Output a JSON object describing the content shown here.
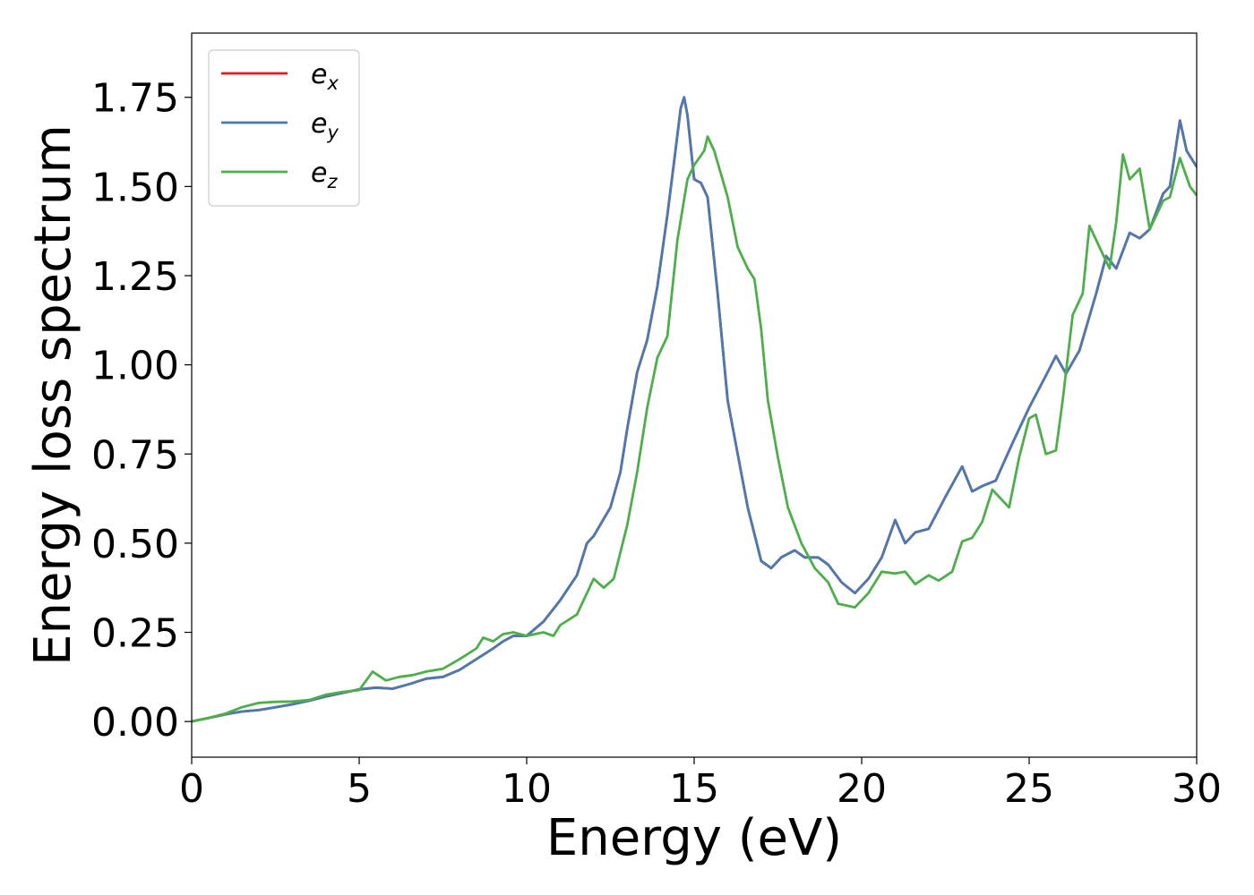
{
  "chart_data": {
    "type": "line",
    "title": "",
    "xlabel": "Energy (eV)",
    "ylabel": "Energy loss spectrum",
    "xlim": [
      0,
      30
    ],
    "ylim": [
      -0.1,
      1.93
    ],
    "xticks": [
      0,
      5,
      10,
      15,
      20,
      25,
      30
    ],
    "yticks": [
      0.0,
      0.25,
      0.5,
      0.75,
      1.0,
      1.25,
      1.5,
      1.75
    ],
    "xtick_labels": [
      "0",
      "5",
      "10",
      "15",
      "20",
      "25",
      "30"
    ],
    "ytick_labels": [
      "0.00",
      "0.25",
      "0.50",
      "0.75",
      "1.00",
      "1.25",
      "1.50",
      "1.75"
    ],
    "grid": false,
    "legend_position": "upper-left",
    "series": [
      {
        "name": "e",
        "subscript": "x",
        "color": "#e41a1c",
        "points": [
          [
            0,
            0
          ],
          [
            0.5,
            0.01
          ],
          [
            1,
            0.02
          ],
          [
            1.5,
            0.028
          ],
          [
            2,
            0.032
          ],
          [
            2.5,
            0.04
          ],
          [
            3,
            0.048
          ],
          [
            3.5,
            0.058
          ],
          [
            4,
            0.07
          ],
          [
            4.5,
            0.08
          ],
          [
            5,
            0.09
          ],
          [
            5.5,
            0.095
          ],
          [
            6,
            0.092
          ],
          [
            6.5,
            0.105
          ],
          [
            7,
            0.12
          ],
          [
            7.5,
            0.125
          ],
          [
            8,
            0.145
          ],
          [
            8.5,
            0.175
          ],
          [
            9,
            0.205
          ],
          [
            9.3,
            0.225
          ],
          [
            9.6,
            0.24
          ],
          [
            10,
            0.24
          ],
          [
            10.5,
            0.28
          ],
          [
            11,
            0.34
          ],
          [
            11.5,
            0.41
          ],
          [
            11.8,
            0.5
          ],
          [
            12,
            0.52
          ],
          [
            12.5,
            0.6
          ],
          [
            12.8,
            0.7
          ],
          [
            13,
            0.82
          ],
          [
            13.3,
            0.98
          ],
          [
            13.6,
            1.07
          ],
          [
            13.9,
            1.22
          ],
          [
            14.2,
            1.42
          ],
          [
            14.4,
            1.57
          ],
          [
            14.6,
            1.72
          ],
          [
            14.7,
            1.75
          ],
          [
            14.8,
            1.7
          ],
          [
            15,
            1.52
          ],
          [
            15.2,
            1.51
          ],
          [
            15.4,
            1.47
          ],
          [
            15.7,
            1.2
          ],
          [
            16,
            0.9
          ],
          [
            16.3,
            0.75
          ],
          [
            16.6,
            0.6
          ],
          [
            17,
            0.45
          ],
          [
            17.3,
            0.43
          ],
          [
            17.6,
            0.46
          ],
          [
            18,
            0.48
          ],
          [
            18.3,
            0.46
          ],
          [
            18.7,
            0.46
          ],
          [
            19,
            0.44
          ],
          [
            19.4,
            0.39
          ],
          [
            19.8,
            0.36
          ],
          [
            20.2,
            0.4
          ],
          [
            20.6,
            0.46
          ],
          [
            21,
            0.565
          ],
          [
            21.3,
            0.5
          ],
          [
            21.6,
            0.53
          ],
          [
            22,
            0.54
          ],
          [
            22.5,
            0.63
          ],
          [
            23,
            0.715
          ],
          [
            23.3,
            0.645
          ],
          [
            23.6,
            0.66
          ],
          [
            24,
            0.675
          ],
          [
            24.5,
            0.78
          ],
          [
            25,
            0.88
          ],
          [
            25.5,
            0.97
          ],
          [
            25.8,
            1.025
          ],
          [
            26.1,
            0.975
          ],
          [
            26.5,
            1.04
          ],
          [
            27,
            1.2
          ],
          [
            27.3,
            1.305
          ],
          [
            27.6,
            1.27
          ],
          [
            28,
            1.37
          ],
          [
            28.3,
            1.355
          ],
          [
            28.6,
            1.38
          ],
          [
            29,
            1.48
          ],
          [
            29.2,
            1.5
          ],
          [
            29.5,
            1.685
          ],
          [
            29.7,
            1.6
          ],
          [
            30,
            1.555
          ]
        ]
      },
      {
        "name": "e",
        "subscript": "y",
        "color": "#4a7ab0",
        "points": [
          [
            0,
            0
          ],
          [
            0.5,
            0.01
          ],
          [
            1,
            0.02
          ],
          [
            1.5,
            0.028
          ],
          [
            2,
            0.032
          ],
          [
            2.5,
            0.04
          ],
          [
            3,
            0.048
          ],
          [
            3.5,
            0.058
          ],
          [
            4,
            0.07
          ],
          [
            4.5,
            0.08
          ],
          [
            5,
            0.09
          ],
          [
            5.5,
            0.095
          ],
          [
            6,
            0.092
          ],
          [
            6.5,
            0.105
          ],
          [
            7,
            0.12
          ],
          [
            7.5,
            0.125
          ],
          [
            8,
            0.145
          ],
          [
            8.5,
            0.175
          ],
          [
            9,
            0.205
          ],
          [
            9.3,
            0.225
          ],
          [
            9.6,
            0.24
          ],
          [
            10,
            0.24
          ],
          [
            10.5,
            0.28
          ],
          [
            11,
            0.34
          ],
          [
            11.5,
            0.41
          ],
          [
            11.8,
            0.5
          ],
          [
            12,
            0.52
          ],
          [
            12.5,
            0.6
          ],
          [
            12.8,
            0.7
          ],
          [
            13,
            0.82
          ],
          [
            13.3,
            0.98
          ],
          [
            13.6,
            1.07
          ],
          [
            13.9,
            1.22
          ],
          [
            14.2,
            1.42
          ],
          [
            14.4,
            1.57
          ],
          [
            14.6,
            1.72
          ],
          [
            14.7,
            1.75
          ],
          [
            14.8,
            1.7
          ],
          [
            15,
            1.52
          ],
          [
            15.2,
            1.51
          ],
          [
            15.4,
            1.47
          ],
          [
            15.7,
            1.2
          ],
          [
            16,
            0.9
          ],
          [
            16.3,
            0.75
          ],
          [
            16.6,
            0.6
          ],
          [
            17,
            0.45
          ],
          [
            17.3,
            0.43
          ],
          [
            17.6,
            0.46
          ],
          [
            18,
            0.48
          ],
          [
            18.3,
            0.46
          ],
          [
            18.7,
            0.46
          ],
          [
            19,
            0.44
          ],
          [
            19.4,
            0.39
          ],
          [
            19.8,
            0.36
          ],
          [
            20.2,
            0.4
          ],
          [
            20.6,
            0.46
          ],
          [
            21,
            0.565
          ],
          [
            21.3,
            0.5
          ],
          [
            21.6,
            0.53
          ],
          [
            22,
            0.54
          ],
          [
            22.5,
            0.63
          ],
          [
            23,
            0.715
          ],
          [
            23.3,
            0.645
          ],
          [
            23.6,
            0.66
          ],
          [
            24,
            0.675
          ],
          [
            24.5,
            0.78
          ],
          [
            25,
            0.88
          ],
          [
            25.5,
            0.97
          ],
          [
            25.8,
            1.025
          ],
          [
            26.1,
            0.975
          ],
          [
            26.5,
            1.04
          ],
          [
            27,
            1.2
          ],
          [
            27.3,
            1.305
          ],
          [
            27.6,
            1.27
          ],
          [
            28,
            1.37
          ],
          [
            28.3,
            1.355
          ],
          [
            28.6,
            1.38
          ],
          [
            29,
            1.48
          ],
          [
            29.2,
            1.5
          ],
          [
            29.5,
            1.685
          ],
          [
            29.7,
            1.6
          ],
          [
            30,
            1.555
          ]
        ]
      },
      {
        "name": "e",
        "subscript": "z",
        "color": "#4daf4a",
        "points": [
          [
            0,
            0
          ],
          [
            0.5,
            0.01
          ],
          [
            1,
            0.022
          ],
          [
            1.5,
            0.04
          ],
          [
            2,
            0.052
          ],
          [
            2.5,
            0.055
          ],
          [
            3,
            0.056
          ],
          [
            3.5,
            0.06
          ],
          [
            4,
            0.075
          ],
          [
            4.5,
            0.083
          ],
          [
            5,
            0.088
          ],
          [
            5.4,
            0.14
          ],
          [
            5.8,
            0.115
          ],
          [
            6.2,
            0.125
          ],
          [
            6.6,
            0.13
          ],
          [
            7,
            0.14
          ],
          [
            7.5,
            0.148
          ],
          [
            8,
            0.175
          ],
          [
            8.5,
            0.205
          ],
          [
            8.7,
            0.235
          ],
          [
            9,
            0.225
          ],
          [
            9.3,
            0.245
          ],
          [
            9.6,
            0.25
          ],
          [
            10,
            0.24
          ],
          [
            10.5,
            0.25
          ],
          [
            10.8,
            0.24
          ],
          [
            11,
            0.27
          ],
          [
            11.5,
            0.3
          ],
          [
            11.8,
            0.36
          ],
          [
            12,
            0.4
          ],
          [
            12.3,
            0.375
          ],
          [
            12.6,
            0.4
          ],
          [
            13,
            0.55
          ],
          [
            13.3,
            0.7
          ],
          [
            13.6,
            0.88
          ],
          [
            13.9,
            1.02
          ],
          [
            14.2,
            1.08
          ],
          [
            14.5,
            1.35
          ],
          [
            14.8,
            1.52
          ],
          [
            15,
            1.56
          ],
          [
            15.3,
            1.6
          ],
          [
            15.4,
            1.64
          ],
          [
            15.6,
            1.6
          ],
          [
            16,
            1.47
          ],
          [
            16.3,
            1.33
          ],
          [
            16.6,
            1.27
          ],
          [
            16.8,
            1.24
          ],
          [
            17,
            1.1
          ],
          [
            17.2,
            0.9
          ],
          [
            17.5,
            0.74
          ],
          [
            17.8,
            0.6
          ],
          [
            18.2,
            0.5
          ],
          [
            18.6,
            0.43
          ],
          [
            19,
            0.39
          ],
          [
            19.3,
            0.33
          ],
          [
            19.8,
            0.32
          ],
          [
            20.2,
            0.36
          ],
          [
            20.6,
            0.42
          ],
          [
            21,
            0.415
          ],
          [
            21.3,
            0.42
          ],
          [
            21.6,
            0.385
          ],
          [
            22,
            0.41
          ],
          [
            22.3,
            0.395
          ],
          [
            22.7,
            0.42
          ],
          [
            23,
            0.505
          ],
          [
            23.3,
            0.515
          ],
          [
            23.6,
            0.56
          ],
          [
            23.9,
            0.65
          ],
          [
            24.2,
            0.62
          ],
          [
            24.4,
            0.6
          ],
          [
            24.7,
            0.74
          ],
          [
            25,
            0.85
          ],
          [
            25.2,
            0.86
          ],
          [
            25.5,
            0.75
          ],
          [
            25.8,
            0.76
          ],
          [
            26,
            0.9
          ],
          [
            26.3,
            1.14
          ],
          [
            26.6,
            1.2
          ],
          [
            26.8,
            1.39
          ],
          [
            27.1,
            1.33
          ],
          [
            27.4,
            1.27
          ],
          [
            27.6,
            1.4
          ],
          [
            27.8,
            1.59
          ],
          [
            28,
            1.52
          ],
          [
            28.3,
            1.55
          ],
          [
            28.6,
            1.38
          ],
          [
            29,
            1.46
          ],
          [
            29.2,
            1.47
          ],
          [
            29.5,
            1.58
          ],
          [
            29.8,
            1.5
          ],
          [
            30,
            1.475
          ]
        ]
      }
    ]
  }
}
